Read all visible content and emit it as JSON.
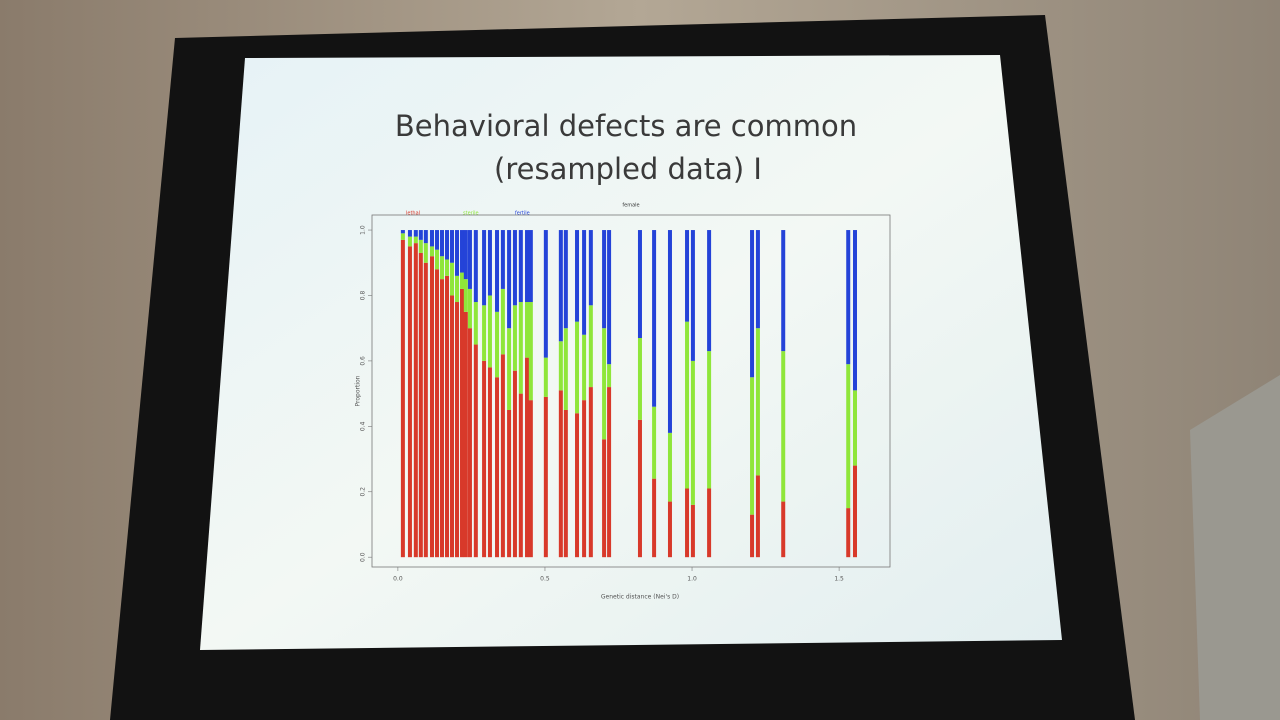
{
  "slide_title_line1": "Behavioral defects are common",
  "slide_title_line2": "(resampled data) I",
  "chart_data": {
    "type": "bar",
    "title": "female",
    "x_label": "Genetic distance (Nei's D)",
    "y_label": "Proportion",
    "stacked": true,
    "x": [
      0.017,
      0.041,
      0.061,
      0.078,
      0.095,
      0.116,
      0.133,
      0.15,
      0.167,
      0.184,
      0.201,
      0.218,
      0.231,
      0.245,
      0.265,
      0.293,
      0.313,
      0.337,
      0.357,
      0.378,
      0.398,
      0.418,
      0.439,
      0.452,
      0.503,
      0.554,
      0.571,
      0.609,
      0.633,
      0.656,
      0.701,
      0.718,
      0.823,
      0.871,
      0.925,
      0.983,
      1.003,
      1.058,
      1.204,
      1.224,
      1.31,
      1.531,
      1.554
    ],
    "series": [
      {
        "name": "lethal",
        "color": "#d8392a",
        "values": [
          0.97,
          0.95,
          0.96,
          0.93,
          0.9,
          0.92,
          0.88,
          0.85,
          0.86,
          0.8,
          0.78,
          0.82,
          0.75,
          0.7,
          0.65,
          0.6,
          0.58,
          0.55,
          0.62,
          0.45,
          0.57,
          0.5,
          0.61,
          0.48,
          0.49,
          0.51,
          0.45,
          0.44,
          0.48,
          0.52,
          0.36,
          0.52,
          0.42,
          0.24,
          0.17,
          0.21,
          0.16,
          0.21,
          0.13,
          0.25,
          0.17,
          0.15,
          0.28
        ]
      },
      {
        "name": "sterile",
        "color": "#8fe63a",
        "values": [
          0.02,
          0.03,
          0.02,
          0.04,
          0.06,
          0.03,
          0.06,
          0.07,
          0.05,
          0.1,
          0.08,
          0.05,
          0.1,
          0.12,
          0.13,
          0.17,
          0.22,
          0.2,
          0.2,
          0.25,
          0.2,
          0.28,
          0.17,
          0.3,
          0.12,
          0.15,
          0.25,
          0.28,
          0.2,
          0.25,
          0.34,
          0.07,
          0.25,
          0.22,
          0.21,
          0.51,
          0.44,
          0.42,
          0.42,
          0.45,
          0.46,
          0.44,
          0.23
        ]
      },
      {
        "name": "fertile",
        "color": "#2443d8",
        "values": [
          0.01,
          0.02,
          0.02,
          0.03,
          0.04,
          0.05,
          0.06,
          0.08,
          0.09,
          0.1,
          0.14,
          0.13,
          0.15,
          0.18,
          0.22,
          0.23,
          0.2,
          0.25,
          0.18,
          0.3,
          0.23,
          0.22,
          0.22,
          0.22,
          0.39,
          0.34,
          0.3,
          0.28,
          0.32,
          0.23,
          0.3,
          0.41,
          0.33,
          0.54,
          0.62,
          0.28,
          0.4,
          0.37,
          0.45,
          0.3,
          0.37,
          0.41,
          0.49
        ]
      }
    ],
    "xlim": [
      -0.088,
      1.673
    ],
    "ylim": [
      -0.03,
      1.046
    ],
    "xticks": [
      {
        "value": 0,
        "label": "0.0"
      },
      0.5,
      {
        "value": 1,
        "label": "1.0"
      },
      1.5
    ],
    "yticks": [
      {
        "value": 0,
        "label": "0.0"
      },
      0.2,
      0.4,
      0.6,
      0.8,
      {
        "value": 1,
        "label": "1.0"
      }
    ]
  }
}
